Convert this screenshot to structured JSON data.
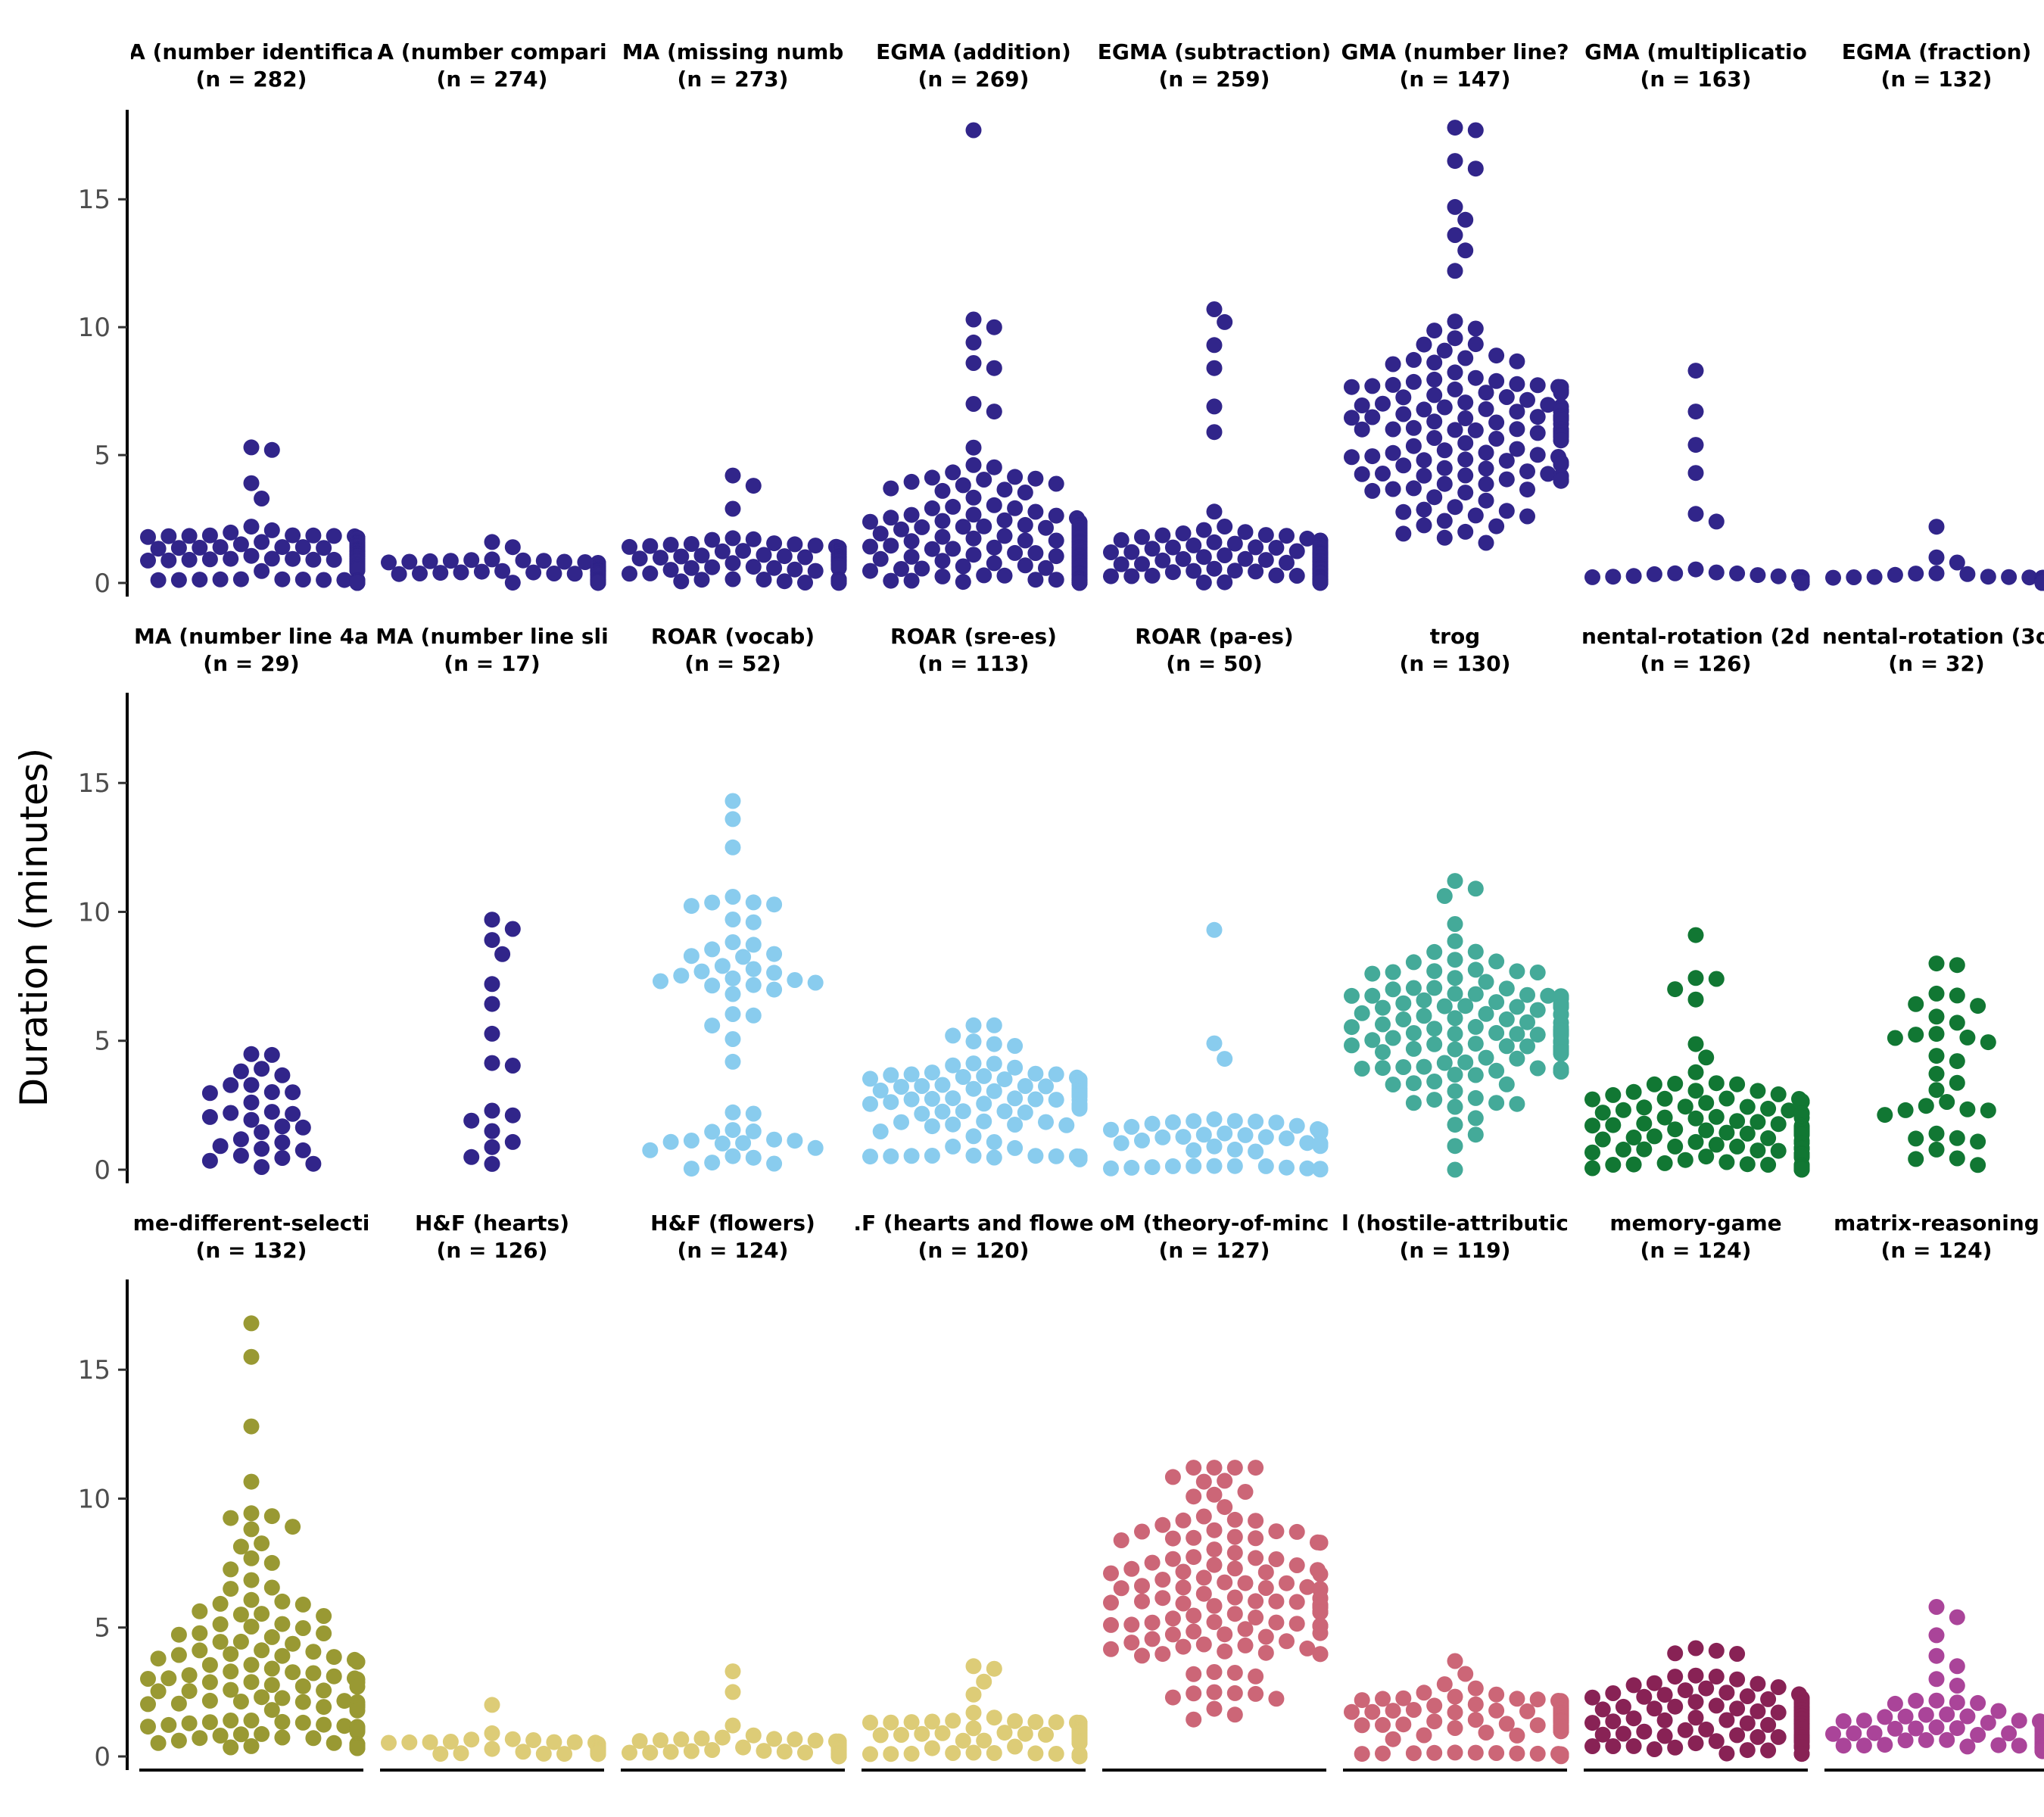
{
  "chart_data": {
    "type": "scatter",
    "style": "beeswarm small multiples (3 rows x 8 columns)",
    "ylabel": "Duration (minutes)",
    "xlabel": "",
    "ylim": [
      0,
      18.5
    ],
    "yticks": [
      0,
      5,
      10,
      15
    ],
    "grid": false,
    "legend": "none",
    "panels": [
      {
        "title": "A (number identifica",
        "n_label": "(n = 282)",
        "color": "#31258a",
        "n": 282,
        "dist": "band",
        "min": 0,
        "median": 1.3,
        "max": 5.3,
        "outliers": [
          5.3,
          5.2,
          3.9,
          3.3
        ]
      },
      {
        "title": "A (number compari",
        "n_label": "(n = 274)",
        "color": "#31258a",
        "n": 274,
        "dist": "band",
        "min": 0,
        "median": 0.5,
        "max": 1.6,
        "outliers": [
          1.6,
          1.4
        ]
      },
      {
        "title": "MA (missing numb",
        "n_label": "(n = 273)",
        "color": "#31258a",
        "n": 273,
        "dist": "band",
        "min": 0,
        "median": 1.0,
        "max": 4.2,
        "outliers": [
          4.2,
          3.8,
          2.9
        ]
      },
      {
        "title": "EGMA (addition)",
        "n_label": "(n = 269)",
        "color": "#31258a",
        "n": 269,
        "dist": "skew",
        "min": 0,
        "median": 2.2,
        "max": 17.7,
        "outliers": [
          17.7,
          10.3,
          10.0,
          9.4,
          8.6,
          8.4,
          7.0,
          6.7
        ]
      },
      {
        "title": "EGMA (subtraction)",
        "n_label": "(n = 259)",
        "color": "#31258a",
        "n": 259,
        "dist": "skew",
        "min": 0,
        "median": 1.0,
        "max": 10.7,
        "outliers": [
          10.7,
          10.2,
          9.3,
          8.4,
          6.9,
          5.9
        ]
      },
      {
        "title": "GMA (number line?",
        "n_label": "(n = 147)",
        "color": "#31258a",
        "n": 147,
        "dist": "wide",
        "min": 0,
        "median": 6.0,
        "max": 17.8,
        "outliers": [
          17.8,
          17.7,
          16.5,
          16.2,
          14.7,
          14.2,
          13.6,
          13.0,
          12.2
        ]
      },
      {
        "title": "GMA (multiplicatio",
        "n_label": "(n = 163)",
        "color": "#31258a",
        "n": 163,
        "dist": "band",
        "min": 0,
        "median": 0.05,
        "max": 8.3,
        "outliers": [
          8.3,
          6.7,
          5.4,
          4.3,
          2.7,
          2.4
        ]
      },
      {
        "title": "EGMA (fraction)",
        "n_label": "(n = 132)",
        "color": "#31258a",
        "n": 132,
        "dist": "band",
        "min": 0,
        "median": 0.02,
        "max": 2.2,
        "outliers": [
          2.2,
          1.0,
          0.8
        ]
      },
      {
        "title": "MA (number line 4a",
        "n_label": "(n = 29)",
        "color": "#31258a",
        "n": 29,
        "dist": "sparse",
        "min": 0,
        "median": 1.5,
        "max": 4.5,
        "outliers": []
      },
      {
        "title": "MA (number line sli",
        "n_label": "(n = 17)",
        "color": "#31258a",
        "n": 17,
        "dist": "sparse",
        "min": 0,
        "median": 3.0,
        "max": 9.7,
        "outliers": [
          9.7,
          7.2
        ]
      },
      {
        "title": "ROAR (vocab)",
        "n_label": "(n = 52)",
        "color": "#89ccee",
        "n": 52,
        "dist": "bimodal",
        "min": 0,
        "median": 8.2,
        "max": 14.3,
        "outliers": [
          14.3,
          13.6,
          12.5
        ]
      },
      {
        "title": "ROAR (sre-es)",
        "n_label": "(n = 113)",
        "color": "#89ccee",
        "n": 113,
        "dist": "band",
        "min": 0.4,
        "median": 3.0,
        "max": 5.6,
        "outliers": [
          5.6,
          5.2,
          4.8,
          0.9,
          0.4
        ]
      },
      {
        "title": "ROAR (pa-es)",
        "n_label": "(n = 50)",
        "color": "#89ccee",
        "n": 50,
        "dist": "band",
        "min": 0,
        "median": 1.4,
        "max": 9.3,
        "outliers": [
          9.3,
          4.9,
          4.3
        ]
      },
      {
        "title": "trog",
        "n_label": "(n = 130)",
        "color": "#44aa99",
        "n": 130,
        "dist": "wide",
        "min": 0,
        "median": 5.5,
        "max": 11.2,
        "outliers": [
          11.2,
          10.9
        ]
      },
      {
        "title": "nental-rotation (2d",
        "n_label": "(n = 126)",
        "color": "#117733",
        "n": 126,
        "dist": "skew",
        "min": 0,
        "median": 2.2,
        "max": 9.1,
        "outliers": [
          9.1,
          7.4,
          7.0,
          6.6
        ]
      },
      {
        "title": "nental-rotation (3d",
        "n_label": "(n = 32)",
        "color": "#117733",
        "n": 32,
        "dist": "sparse",
        "min": 0,
        "median": 1.8,
        "max": 8.0,
        "outliers": [
          8.0,
          5.7
        ]
      },
      {
        "title": "me-different-selecti",
        "n_label": "(n = 132)",
        "color": "#999933",
        "n": 132,
        "dist": "skew",
        "min": 0.3,
        "median": 4.0,
        "max": 16.8,
        "outliers": [
          16.8,
          15.5,
          12.8
        ]
      },
      {
        "title": "H&F (hearts)",
        "n_label": "(n = 126)",
        "color": "#ddcc77",
        "n": 126,
        "dist": "band",
        "min": 0.1,
        "median": 0.3,
        "max": 2.0,
        "outliers": [
          2.0,
          0.9
        ]
      },
      {
        "title": "H&F (flowers)",
        "n_label": "(n = 124)",
        "color": "#ddcc77",
        "n": 124,
        "dist": "band",
        "min": 0,
        "median": 0.4,
        "max": 3.3,
        "outliers": [
          3.3,
          2.5,
          1.2
        ]
      },
      {
        "title": ".F (hearts and flowe",
        "n_label": "(n = 120)",
        "color": "#ddcc77",
        "n": 120,
        "dist": "band",
        "min": 0,
        "median": 1.0,
        "max": 3.5,
        "outliers": [
          3.5,
          3.4,
          2.9,
          2.4
        ]
      },
      {
        "title": "oM (theory-of-minc",
        "n_label": "(n = 127)",
        "color": "#cc6677",
        "n": 127,
        "dist": "wide",
        "min": 0.8,
        "median": 6.5,
        "max": 11.2,
        "outliers": [
          11.2
        ]
      },
      {
        "title": "l (hostile-attributic",
        "n_label": "(n = 119)",
        "color": "#cc6677",
        "n": 119,
        "dist": "band",
        "min": 0,
        "median": 1.6,
        "max": 3.7,
        "outliers": [
          3.7,
          3.2,
          2.8
        ]
      },
      {
        "title": "memory-game",
        "n_label": "(n = 124)",
        "color": "#882255",
        "n": 124,
        "dist": "wide",
        "min": 0.1,
        "median": 1.5,
        "max": 4.2,
        "outliers": [
          4.2,
          4.0
        ]
      },
      {
        "title": "matrix-reasoning",
        "n_label": "(n = 124)",
        "color": "#aa4499",
        "n": 124,
        "dist": "skew",
        "min": 0.2,
        "median": 1.0,
        "max": 5.8,
        "outliers": [
          5.8,
          5.4,
          4.7,
          3.9,
          3.5,
          3.0
        ]
      }
    ]
  }
}
